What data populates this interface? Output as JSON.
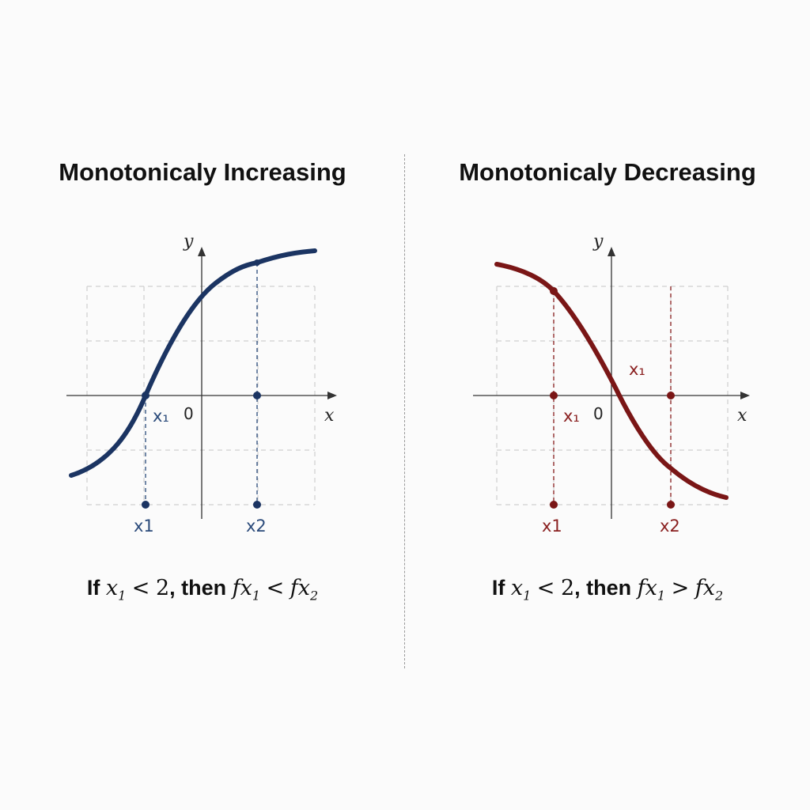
{
  "left": {
    "title": "Monotonicaly Increasing",
    "axis_x": "x",
    "axis_y": "y",
    "origin": "0",
    "point_label_on_axis": "x₁",
    "bottom_label_1": "x1",
    "bottom_label_2": "x2",
    "statement": {
      "prefix": "If",
      "var1": "x",
      "sub1": "1",
      "lt": "<",
      "rhs1": "2",
      "then": ", then",
      "f1": "fx",
      "fsub1": "1",
      "op": "<",
      "f2": "fx",
      "fsub2": "2"
    },
    "color": "#1b3462"
  },
  "right": {
    "title": "Monotonicaly Decreasing",
    "axis_x": "x",
    "axis_y": "y",
    "origin": "0",
    "point_label_on_axis": "x₁",
    "curve_label": "x₁",
    "bottom_label_1": "x1",
    "bottom_label_2": "x2",
    "statement": {
      "prefix": "If",
      "var1": "x",
      "sub1": "1",
      "lt": "<",
      "rhs1": "2",
      "then": ", then",
      "f1": "fx",
      "fsub1": "1",
      "op": ">",
      "f2": "fx",
      "fsub2": "2"
    },
    "color": "#7a1616"
  }
}
